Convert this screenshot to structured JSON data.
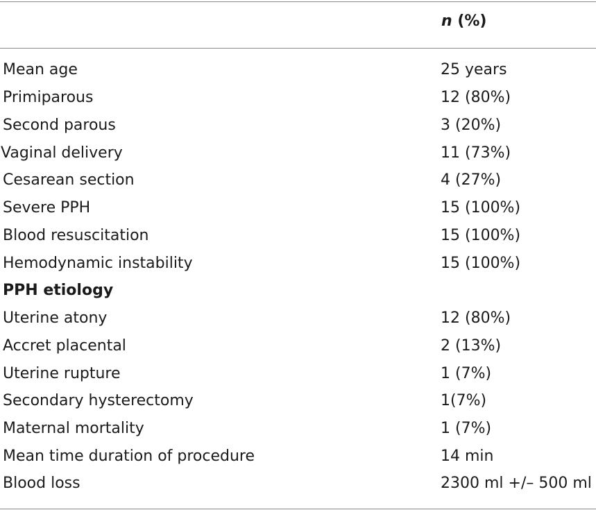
{
  "header": {
    "n_label": "n",
    "pct_label": " (%)"
  },
  "rows": [
    {
      "label": "Mean age",
      "value": "25 years"
    },
    {
      "label": "Primiparous",
      "value": "12 (80%)"
    },
    {
      "label": "Second parous",
      "value": "3 (20%)"
    },
    {
      "label": "Vaginal delivery",
      "value": "11 (73%)"
    },
    {
      "label": "Cesarean section",
      "value": "4 (27%)"
    },
    {
      "label": "Severe PPH",
      "value": "15 (100%)"
    },
    {
      "label": "Blood resuscitation",
      "value": "15 (100%)"
    },
    {
      "label": "Hemodynamic instability",
      "value": "15 (100%)"
    },
    {
      "label": "PPH etiology",
      "value": ""
    },
    {
      "label": "Uterine atony",
      "value": "12 (80%)"
    },
    {
      "label": "Accret placental",
      "value": "2 (13%)"
    },
    {
      "label": "Uterine rupture",
      "value": "1 (7%)"
    },
    {
      "label": "Secondary hysterectomy",
      "value": "1(7%)"
    },
    {
      "label": "Maternal mortality",
      "value": "1 (7%)"
    },
    {
      "label": "Mean time duration of procedure",
      "value": "14 min"
    },
    {
      "label": "Blood loss",
      "value": "2300 ml +/– 500 ml"
    }
  ]
}
